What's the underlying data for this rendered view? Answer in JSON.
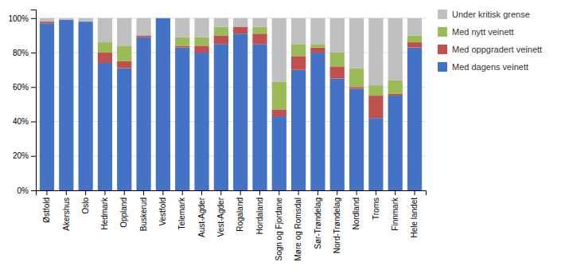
{
  "chart_data": {
    "type": "bar",
    "stacked": true,
    "categories": [
      "Østfold",
      "Akershus",
      "Oslo",
      "Hedmark",
      "Oppland",
      "Buskerud",
      "Vestfold",
      "Telemark",
      "Aust-Agder",
      "Vest-Agder",
      "Rogaland",
      "Hordaland",
      "Sogn og Fjordane",
      "Møre og Romsdal",
      "Sør-Trøndelag",
      "Nord-Trøndelag",
      "Nordland",
      "Troms",
      "Finnmark",
      "Hele landet"
    ],
    "series": [
      {
        "name": "Med dagens veinett",
        "color": "#4472C4",
        "values": [
          97,
          99,
          98,
          74,
          71,
          89,
          100,
          83,
          80,
          85,
          91,
          85,
          43,
          70,
          80,
          65,
          59,
          42,
          55,
          83
        ]
      },
      {
        "name": "Med oppgradert veinett",
        "color": "#C0504D",
        "values": [
          1,
          0,
          0,
          6,
          4,
          1,
          0,
          1,
          4,
          5,
          4,
          6,
          4,
          8,
          3,
          7,
          1,
          13,
          1,
          3
        ]
      },
      {
        "name": "Med nytt veinett",
        "color": "#9BBB59",
        "values": [
          0,
          0,
          0,
          6,
          9,
          0,
          0,
          5,
          5,
          5,
          0,
          4,
          16,
          7,
          2,
          8,
          11,
          6,
          8,
          4
        ]
      },
      {
        "name": "Under kritisk grense",
        "color": "#C0C0C0",
        "values": [
          2,
          1,
          2,
          14,
          16,
          10,
          0,
          11,
          11,
          5,
          5,
          5,
          37,
          15,
          15,
          20,
          29,
          39,
          36,
          10
        ]
      }
    ],
    "ylim": [
      0,
      105
    ],
    "yticks": [
      {
        "value": 0,
        "label": "0%"
      },
      {
        "value": 20,
        "label": "20%"
      },
      {
        "value": 40,
        "label": "40%"
      },
      {
        "value": 60,
        "label": "60%"
      },
      {
        "value": 80,
        "label": "80%"
      },
      {
        "value": 100,
        "label": "100%"
      }
    ],
    "grid": true,
    "legend": "right"
  }
}
